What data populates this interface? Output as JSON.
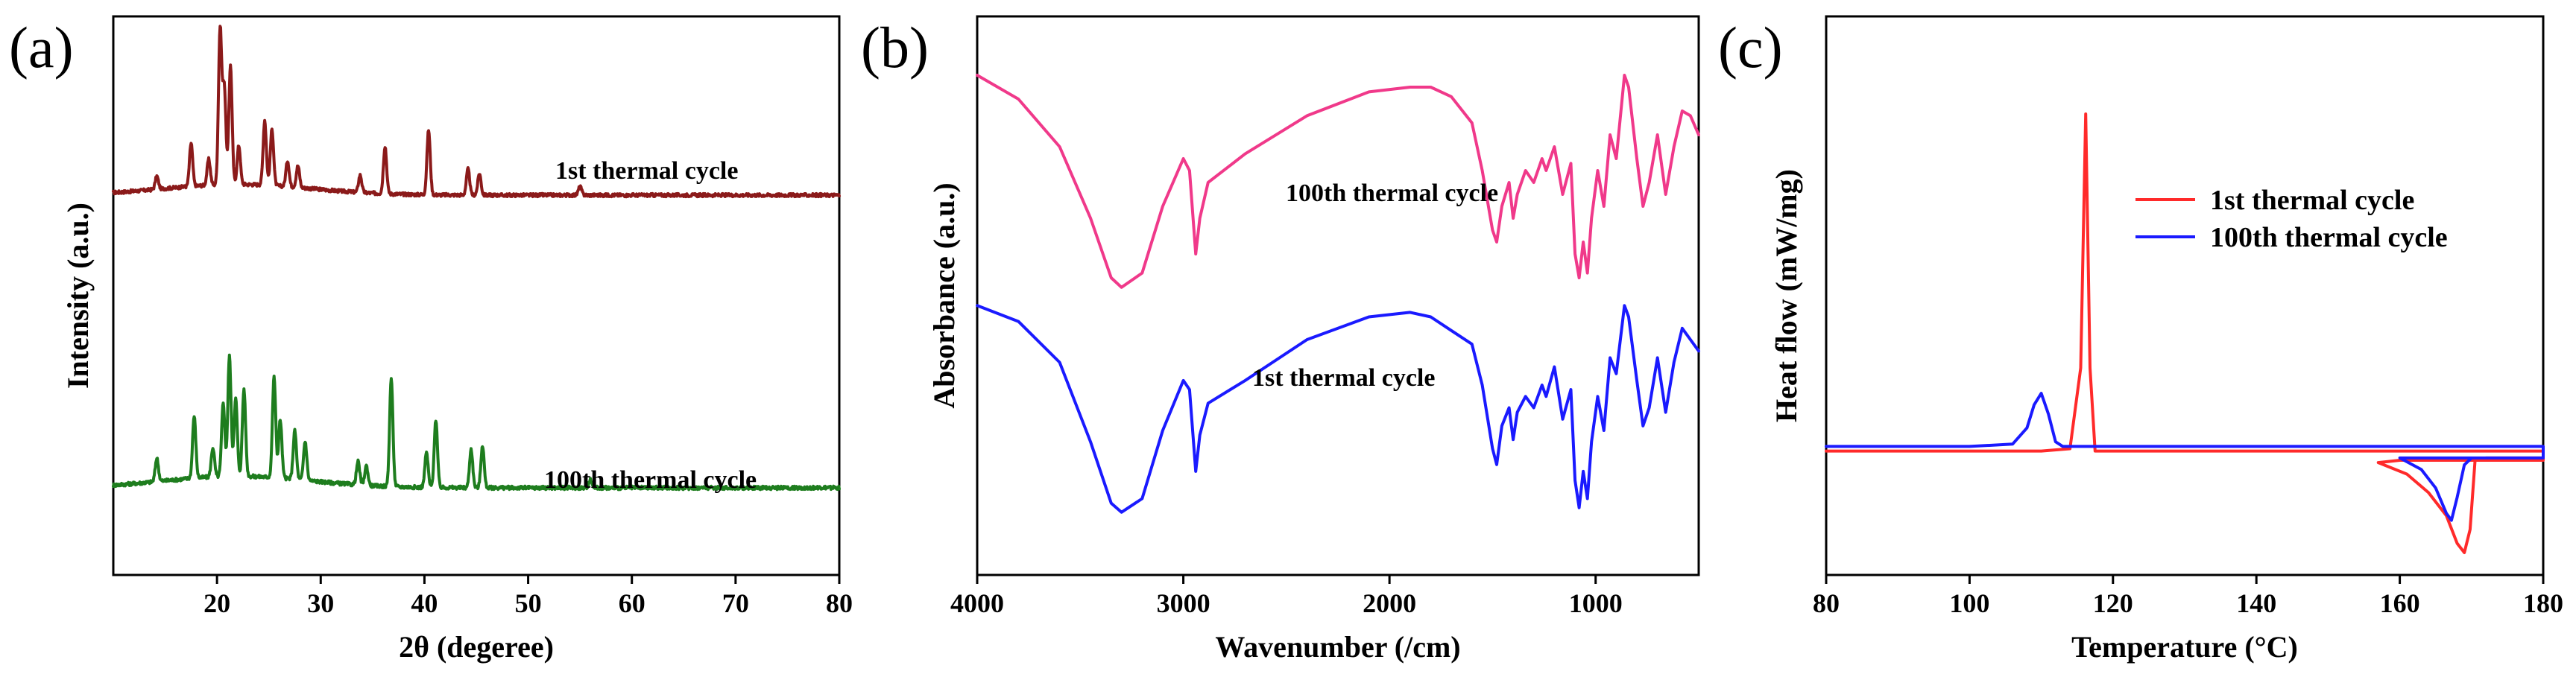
{
  "chart_data": [
    {
      "panel": "(a)",
      "type": "line",
      "title": "",
      "xlabel": "2θ (degeree)",
      "ylabel": "Intensity (a.u.)",
      "xlim": [
        10,
        80
      ],
      "x_ticks": [
        20,
        30,
        40,
        50,
        60,
        70,
        80
      ],
      "y_ticks": [],
      "grid": false,
      "series": [
        {
          "name": "1st thermal cycle",
          "color": "#8b1a1a",
          "baseline": 0.0,
          "peaks": [
            [
              14.2,
              0.06
            ],
            [
              17.5,
              0.2
            ],
            [
              19.2,
              0.12
            ],
            [
              20.3,
              0.72
            ],
            [
              20.7,
              0.45
            ],
            [
              21.3,
              0.55
            ],
            [
              22.1,
              0.18
            ],
            [
              24.6,
              0.3
            ],
            [
              25.3,
              0.26
            ],
            [
              26.8,
              0.12
            ],
            [
              27.8,
              0.1
            ],
            [
              33.8,
              0.08
            ],
            [
              36.2,
              0.22
            ],
            [
              40.4,
              0.3
            ],
            [
              44.2,
              0.12
            ],
            [
              45.3,
              0.1
            ],
            [
              55,
              0.04
            ]
          ],
          "noise": 0.015
        },
        {
          "name": "100th thermal cycle",
          "color": "#1e7d1e",
          "baseline": 0.0,
          "peaks": [
            [
              14.2,
              0.12
            ],
            [
              17.8,
              0.32
            ],
            [
              19.6,
              0.15
            ],
            [
              20.6,
              0.38
            ],
            [
              21.2,
              0.62
            ],
            [
              21.8,
              0.4
            ],
            [
              22.6,
              0.45
            ],
            [
              25.5,
              0.52
            ],
            [
              26.1,
              0.3
            ],
            [
              27.5,
              0.25
            ],
            [
              28.5,
              0.2
            ],
            [
              33.6,
              0.12
            ],
            [
              34.4,
              0.1
            ],
            [
              36.8,
              0.56
            ],
            [
              40.2,
              0.18
            ],
            [
              41.1,
              0.35
            ],
            [
              44.5,
              0.2
            ],
            [
              45.6,
              0.22
            ],
            [
              56,
              0.04
            ]
          ],
          "noise": 0.018
        }
      ],
      "annotations": [
        "1st thermal cycle",
        "100th thermal cycle"
      ]
    },
    {
      "panel": "(b)",
      "type": "line",
      "title": "",
      "xlabel": "Wavenumber (/cm)",
      "ylabel": "Absorbance (a.u.)",
      "xlim": [
        4000,
        500
      ],
      "x_ticks": [
        4000,
        3000,
        2000,
        1000
      ],
      "y_ticks": [],
      "grid": false,
      "series": [
        {
          "name": "100th thermal cycle",
          "color": "#f0398a",
          "points": [
            [
              4000,
              0.95
            ],
            [
              3800,
              0.85
            ],
            [
              3600,
              0.65
            ],
            [
              3450,
              0.35
            ],
            [
              3350,
              0.1
            ],
            [
              3300,
              0.06
            ],
            [
              3200,
              0.12
            ],
            [
              3100,
              0.4
            ],
            [
              3000,
              0.6
            ],
            [
              2970,
              0.55
            ],
            [
              2940,
              0.2
            ],
            [
              2920,
              0.35
            ],
            [
              2880,
              0.5
            ],
            [
              2700,
              0.62
            ],
            [
              2400,
              0.78
            ],
            [
              2100,
              0.88
            ],
            [
              1900,
              0.9
            ],
            [
              1800,
              0.9
            ],
            [
              1700,
              0.86
            ],
            [
              1600,
              0.75
            ],
            [
              1550,
              0.55
            ],
            [
              1500,
              0.3
            ],
            [
              1480,
              0.25
            ],
            [
              1455,
              0.4
            ],
            [
              1420,
              0.5
            ],
            [
              1400,
              0.35
            ],
            [
              1380,
              0.45
            ],
            [
              1340,
              0.55
            ],
            [
              1300,
              0.5
            ],
            [
              1260,
              0.6
            ],
            [
              1240,
              0.55
            ],
            [
              1200,
              0.65
            ],
            [
              1160,
              0.45
            ],
            [
              1120,
              0.58
            ],
            [
              1100,
              0.2
            ],
            [
              1080,
              0.1
            ],
            [
              1060,
              0.25
            ],
            [
              1040,
              0.12
            ],
            [
              1020,
              0.35
            ],
            [
              990,
              0.55
            ],
            [
              960,
              0.4
            ],
            [
              930,
              0.7
            ],
            [
              900,
              0.6
            ],
            [
              860,
              0.95
            ],
            [
              840,
              0.9
            ],
            [
              800,
              0.6
            ],
            [
              770,
              0.4
            ],
            [
              740,
              0.5
            ],
            [
              700,
              0.7
            ],
            [
              660,
              0.45
            ],
            [
              620,
              0.65
            ],
            [
              580,
              0.8
            ],
            [
              540,
              0.78
            ],
            [
              500,
              0.7
            ]
          ]
        },
        {
          "name": "1st thermal cycle",
          "color": "#1a1aff",
          "points": [
            [
              4000,
              0.95
            ],
            [
              3800,
              0.88
            ],
            [
              3600,
              0.7
            ],
            [
              3450,
              0.35
            ],
            [
              3350,
              0.08
            ],
            [
              3300,
              0.04
            ],
            [
              3200,
              0.1
            ],
            [
              3100,
              0.4
            ],
            [
              3000,
              0.62
            ],
            [
              2970,
              0.58
            ],
            [
              2940,
              0.22
            ],
            [
              2920,
              0.38
            ],
            [
              2880,
              0.52
            ],
            [
              2700,
              0.62
            ],
            [
              2400,
              0.8
            ],
            [
              2100,
              0.9
            ],
            [
              1900,
              0.92
            ],
            [
              1800,
              0.9
            ],
            [
              1700,
              0.84
            ],
            [
              1600,
              0.78
            ],
            [
              1550,
              0.6
            ],
            [
              1500,
              0.32
            ],
            [
              1480,
              0.25
            ],
            [
              1455,
              0.42
            ],
            [
              1420,
              0.5
            ],
            [
              1400,
              0.36
            ],
            [
              1380,
              0.48
            ],
            [
              1340,
              0.55
            ],
            [
              1300,
              0.5
            ],
            [
              1260,
              0.6
            ],
            [
              1240,
              0.55
            ],
            [
              1200,
              0.68
            ],
            [
              1160,
              0.45
            ],
            [
              1120,
              0.58
            ],
            [
              1100,
              0.18
            ],
            [
              1080,
              0.06
            ],
            [
              1060,
              0.22
            ],
            [
              1040,
              0.1
            ],
            [
              1020,
              0.35
            ],
            [
              990,
              0.55
            ],
            [
              960,
              0.4
            ],
            [
              930,
              0.72
            ],
            [
              900,
              0.65
            ],
            [
              860,
              0.95
            ],
            [
              840,
              0.9
            ],
            [
              800,
              0.62
            ],
            [
              770,
              0.42
            ],
            [
              740,
              0.5
            ],
            [
              700,
              0.72
            ],
            [
              660,
              0.48
            ],
            [
              620,
              0.7
            ],
            [
              580,
              0.85
            ],
            [
              540,
              0.8
            ],
            [
              500,
              0.75
            ]
          ]
        }
      ],
      "annotations": [
        "100th thermal cycle",
        "1st thermal cycle"
      ]
    },
    {
      "panel": "(c)",
      "type": "line",
      "title": "",
      "xlabel": "Temperature (°C)",
      "ylabel": "Heat flow (mW/mg)",
      "xlim": [
        80,
        180
      ],
      "x_ticks": [
        80,
        100,
        120,
        140,
        160,
        180
      ],
      "y_ticks": [],
      "grid": false,
      "legend_position": "upper-right",
      "series": [
        {
          "name": "1st thermal cycle",
          "color": "#ff2a2a",
          "points": [
            [
              80,
              0.22
            ],
            [
              100,
              0.22
            ],
            [
              110,
              0.22
            ],
            [
              114,
              0.225
            ],
            [
              115.5,
              0.4
            ],
            [
              116.2,
              0.95
            ],
            [
              116.8,
              0.4
            ],
            [
              117.5,
              0.22
            ],
            [
              180,
              0.22
            ],
            [
              180,
              0.2
            ],
            [
              160,
              0.2
            ],
            [
              157,
              0.195
            ],
            [
              161,
              0.17
            ],
            [
              164,
              0.13
            ],
            [
              166.5,
              0.08
            ],
            [
              168,
              0.02
            ],
            [
              169,
              0.0
            ],
            [
              169.8,
              0.05
            ],
            [
              170.5,
              0.2
            ],
            [
              172,
              0.205
            ],
            [
              180,
              0.205
            ]
          ]
        },
        {
          "name": "100th thermal cycle",
          "color": "#1a1aff",
          "points": [
            [
              80,
              0.23
            ],
            [
              100,
              0.23
            ],
            [
              106,
              0.235
            ],
            [
              108,
              0.27
            ],
            [
              109,
              0.32
            ],
            [
              110,
              0.345
            ],
            [
              111,
              0.3
            ],
            [
              112,
              0.24
            ],
            [
              113,
              0.23
            ],
            [
              180,
              0.23
            ],
            [
              180,
              0.205
            ],
            [
              160,
              0.205
            ],
            [
              163,
              0.18
            ],
            [
              165,
              0.14
            ],
            [
              166.5,
              0.085
            ],
            [
              167.2,
              0.07
            ],
            [
              168,
              0.12
            ],
            [
              169,
              0.19
            ],
            [
              170,
              0.205
            ],
            [
              180,
              0.205
            ]
          ]
        }
      ]
    }
  ]
}
